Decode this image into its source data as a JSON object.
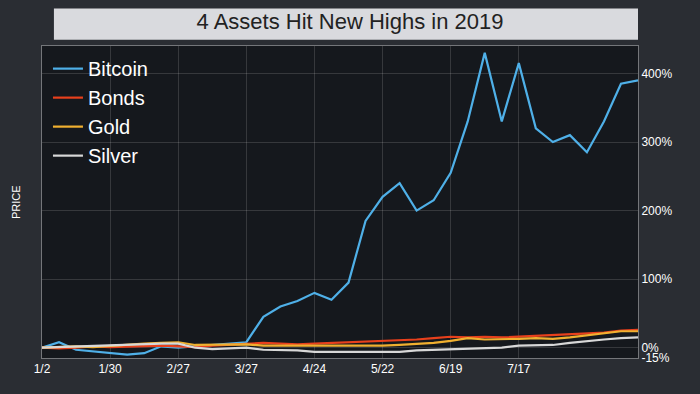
{
  "chart_data": {
    "type": "line",
    "title": "4 Assets Hit New Highs in 2019",
    "y_label": "PRICE",
    "categories": [
      "1/2",
      null,
      null,
      null,
      "1/30",
      null,
      null,
      null,
      "2/27",
      null,
      null,
      null,
      "3/27",
      null,
      null,
      null,
      "4/24",
      null,
      null,
      null,
      "5/22",
      null,
      null,
      null,
      "6/19",
      null,
      null,
      null,
      "7/17",
      null,
      null,
      null,
      null,
      null,
      null,
      null
    ],
    "series": [
      {
        "name": "Bitcoin",
        "color": "#4fb0e8",
        "values": [
          0,
          8,
          -3,
          -5,
          -8,
          -10,
          -8,
          2,
          0,
          2,
          3,
          5,
          8,
          45,
          60,
          68,
          80,
          70,
          95,
          185,
          220,
          240,
          200,
          215,
          255,
          330,
          430,
          330,
          415,
          320,
          300,
          310,
          285,
          330,
          385,
          390
        ]
      },
      {
        "name": "Bonds",
        "color": "#e8401c",
        "values": [
          0,
          -1,
          0,
          2,
          1,
          2,
          2,
          3,
          2,
          1,
          3,
          4,
          5,
          7,
          6,
          5,
          6,
          7,
          8,
          9,
          10,
          10,
          12,
          14,
          16,
          15,
          16,
          15,
          16,
          17,
          18,
          19,
          20,
          22,
          25,
          26
        ]
      },
      {
        "name": "Gold",
        "color": "#f0b030",
        "values": [
          0,
          1,
          2,
          1,
          3,
          5,
          6,
          7,
          8,
          4,
          4,
          5,
          5,
          3,
          3,
          2,
          2,
          2,
          2,
          3,
          3,
          4,
          5,
          7,
          10,
          14,
          12,
          12,
          13,
          14,
          13,
          15,
          18,
          22,
          24,
          24
        ]
      },
      {
        "name": "Silver",
        "color": "#d8d8d8",
        "values": [
          0,
          1,
          2,
          3,
          3,
          4,
          5,
          6,
          6,
          0,
          -2,
          -1,
          0,
          -3,
          -3,
          -4,
          -6,
          -6,
          -7,
          -7,
          -6,
          -6,
          -4,
          -3,
          -2,
          -1,
          -1,
          0,
          3,
          3,
          4,
          7,
          10,
          12,
          14,
          15
        ]
      }
    ],
    "ylim": [
      -15,
      440
    ],
    "yticks": [
      {
        "value": -15,
        "label": "-15%"
      },
      {
        "value": 0,
        "label": "0%"
      },
      {
        "value": 100,
        "label": "100%"
      },
      {
        "value": 200,
        "label": "200%"
      },
      {
        "value": 300,
        "label": "300%"
      },
      {
        "value": 400,
        "label": "400%"
      }
    ],
    "grid": true,
    "legend": "top-left"
  }
}
